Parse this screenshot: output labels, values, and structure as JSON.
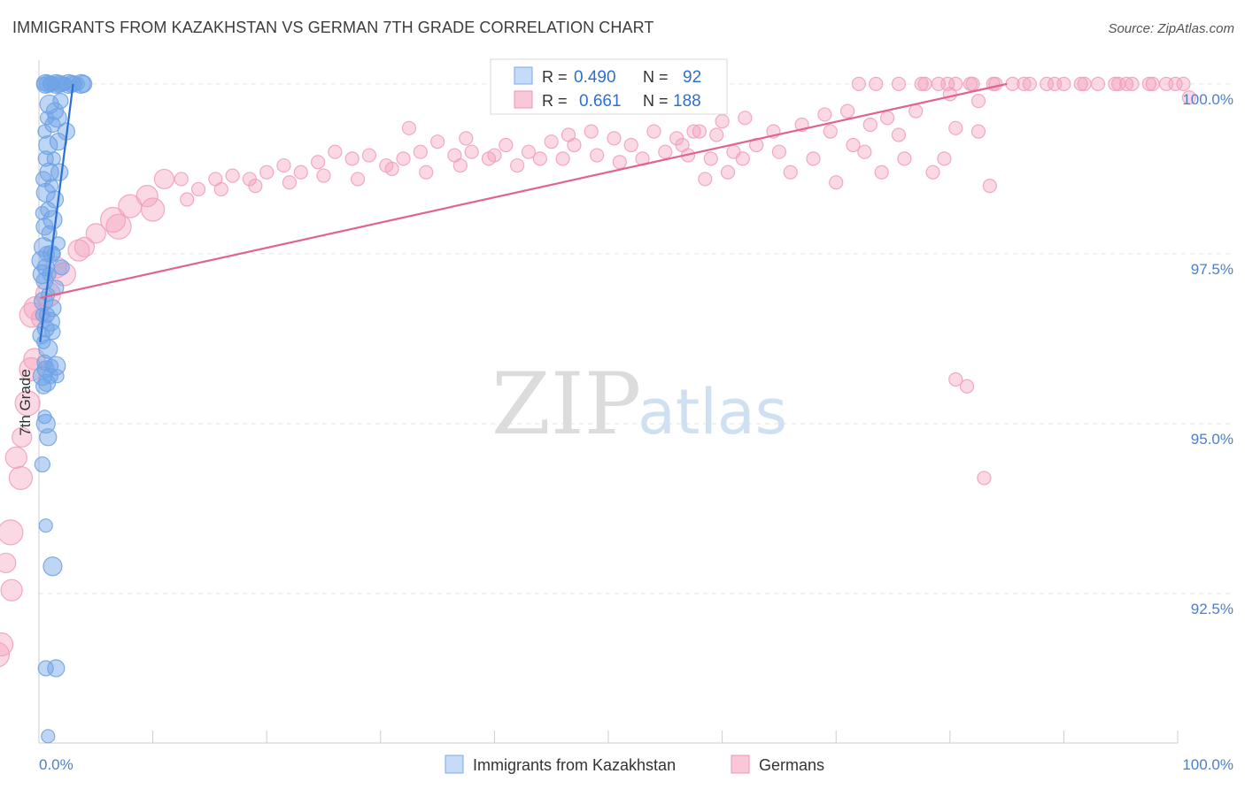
{
  "title": "IMMIGRANTS FROM KAZAKHSTAN VS GERMAN 7TH GRADE CORRELATION CHART",
  "source": "Source: ZipAtlas.com",
  "watermark": {
    "zip": "ZIP",
    "atlas": "atlas"
  },
  "legend_box": {
    "rows": [
      {
        "r_label": "R =",
        "r_value": "0.490",
        "n_label": "N =",
        "n_value": "92"
      },
      {
        "r_label": "R =",
        "r_value": "0.661",
        "n_label": "N =",
        "n_value": "188"
      }
    ]
  },
  "bottom_legend": [
    "Immigrants from Kazakhstan",
    "Germans"
  ],
  "chart_data": {
    "type": "scatter",
    "title": "IMMIGRANTS FROM KAZAKHSTAN VS GERMAN 7TH GRADE CORRELATION CHART",
    "xlabel": "",
    "ylabel": "7th Grade",
    "xlim": [
      0,
      100
    ],
    "ylim": [
      90.3,
      100.35
    ],
    "x_tick_labels": [
      "0.0%",
      "100.0%"
    ],
    "y_ticks": [
      92.5,
      95.0,
      97.5,
      100.0
    ],
    "y_tick_labels": [
      "92.5%",
      "95.0%",
      "97.5%",
      "100.0%"
    ],
    "grid": true,
    "legend_position": "top-center",
    "series": [
      {
        "name": "Immigrants from Kazakhstan",
        "color": "#6fa3e6",
        "line_color": "#2a6fd4",
        "r": "0.490",
        "n": "92",
        "trend": [
          [
            0.1,
            96.2
          ],
          [
            3.0,
            100.0
          ]
        ],
        "points": [
          [
            0.4,
            100
          ],
          [
            0.6,
            100
          ],
          [
            0.8,
            100
          ],
          [
            1.0,
            100
          ],
          [
            1.3,
            100
          ],
          [
            1.5,
            100
          ],
          [
            1.8,
            100
          ],
          [
            2.0,
            100
          ],
          [
            2.3,
            100
          ],
          [
            2.6,
            100
          ],
          [
            2.9,
            100
          ],
          [
            3.1,
            100
          ],
          [
            3.4,
            100
          ],
          [
            3.7,
            100
          ],
          [
            3.9,
            100
          ],
          [
            1.1,
            100
          ],
          [
            2.2,
            100
          ],
          [
            0.9,
            99.7
          ],
          [
            1.4,
            99.6
          ],
          [
            1.9,
            99.75
          ],
          [
            0.7,
            99.5
          ],
          [
            1.6,
            99.5
          ],
          [
            2.4,
            99.3
          ],
          [
            1.2,
            99.4
          ],
          [
            0.5,
            99.3
          ],
          [
            0.8,
            99.1
          ],
          [
            1.7,
            99.15
          ],
          [
            0.6,
            98.9
          ],
          [
            1.3,
            98.9
          ],
          [
            0.9,
            98.7
          ],
          [
            1.8,
            98.7
          ],
          [
            0.4,
            98.6
          ],
          [
            1.1,
            98.5
          ],
          [
            0.6,
            98.4
          ],
          [
            1.4,
            98.3
          ],
          [
            0.8,
            98.15
          ],
          [
            0.3,
            98.1
          ],
          [
            1.2,
            98.0
          ],
          [
            0.5,
            97.9
          ],
          [
            0.9,
            97.8
          ],
          [
            1.7,
            97.65
          ],
          [
            0.4,
            97.6
          ],
          [
            1.1,
            97.5
          ],
          [
            0.7,
            97.5
          ],
          [
            1.3,
            97.5
          ],
          [
            0.2,
            97.4
          ],
          [
            0.6,
            97.3
          ],
          [
            2.0,
            97.3
          ],
          [
            0.9,
            97.2
          ],
          [
            0.3,
            97.2
          ],
          [
            0.5,
            97.1
          ],
          [
            1.5,
            97.0
          ],
          [
            0.8,
            96.9
          ],
          [
            0.4,
            96.8
          ],
          [
            1.2,
            96.7
          ],
          [
            0.7,
            96.6
          ],
          [
            0.3,
            96.6
          ],
          [
            1.0,
            96.5
          ],
          [
            0.6,
            96.4
          ],
          [
            1.2,
            96.35
          ],
          [
            0.4,
            96.2
          ],
          [
            0.8,
            96.1
          ],
          [
            0.2,
            96.3
          ],
          [
            0.5,
            95.9
          ],
          [
            1.1,
            95.85
          ],
          [
            1.5,
            95.85
          ],
          [
            0.6,
            95.8
          ],
          [
            1.0,
            95.7
          ],
          [
            1.6,
            95.7
          ],
          [
            0.3,
            95.7
          ],
          [
            0.7,
            95.6
          ],
          [
            0.4,
            95.55
          ],
          [
            0.5,
            95.1
          ],
          [
            0.6,
            95.0
          ],
          [
            0.8,
            94.8
          ],
          [
            0.3,
            94.4
          ],
          [
            0.6,
            93.5
          ],
          [
            1.2,
            92.9
          ],
          [
            1.5,
            91.4
          ],
          [
            0.6,
            91.4
          ],
          [
            0.8,
            90.4
          ]
        ]
      },
      {
        "name": "Germans",
        "color": "#f2a0bb",
        "line_color": "#e0648e",
        "r": "0.661",
        "n": "188",
        "trend": [
          [
            0.1,
            96.85
          ],
          [
            85.0,
            100.0
          ]
        ],
        "points": [
          [
            72,
            100
          ],
          [
            73.5,
            100
          ],
          [
            75.5,
            100
          ],
          [
            77.5,
            100
          ],
          [
            79,
            100
          ],
          [
            80.5,
            100
          ],
          [
            82,
            100
          ],
          [
            84,
            100
          ],
          [
            85.5,
            100
          ],
          [
            87,
            100
          ],
          [
            88.5,
            100
          ],
          [
            90,
            100
          ],
          [
            91.5,
            100
          ],
          [
            93,
            100
          ],
          [
            94.5,
            100
          ],
          [
            96,
            100
          ],
          [
            97.5,
            100
          ],
          [
            99,
            100
          ],
          [
            100.5,
            100
          ],
          [
            77.8,
            100
          ],
          [
            79.8,
            100
          ],
          [
            81.8,
            100
          ],
          [
            83.8,
            100
          ],
          [
            86.5,
            100
          ],
          [
            89.2,
            100
          ],
          [
            91.8,
            100
          ],
          [
            94.8,
            100
          ],
          [
            95.5,
            100
          ],
          [
            97.8,
            100
          ],
          [
            99.8,
            100
          ],
          [
            80,
            99.85
          ],
          [
            82.5,
            99.75
          ],
          [
            71,
            99.6
          ],
          [
            74.5,
            99.5
          ],
          [
            69,
            99.55
          ],
          [
            67,
            99.4
          ],
          [
            64.5,
            99.3
          ],
          [
            69.5,
            99.3
          ],
          [
            73,
            99.4
          ],
          [
            75.5,
            99.25
          ],
          [
            77,
            99.6
          ],
          [
            80.5,
            99.35
          ],
          [
            60,
            99.45
          ],
          [
            58,
            99.3
          ],
          [
            56,
            99.2
          ],
          [
            54,
            99.3
          ],
          [
            52,
            99.1
          ],
          [
            50.5,
            99.2
          ],
          [
            48.5,
            99.3
          ],
          [
            47,
            99.1
          ],
          [
            45,
            99.15
          ],
          [
            43,
            99.0
          ],
          [
            41,
            99.1
          ],
          [
            39.5,
            98.9
          ],
          [
            38,
            99.0
          ],
          [
            36.5,
            98.95
          ],
          [
            35,
            99.15
          ],
          [
            33.5,
            99.0
          ],
          [
            32,
            98.9
          ],
          [
            30.5,
            98.8
          ],
          [
            29,
            98.95
          ],
          [
            27.5,
            98.9
          ],
          [
            26,
            99.0
          ],
          [
            24.5,
            98.85
          ],
          [
            23,
            98.7
          ],
          [
            21.5,
            98.8
          ],
          [
            20,
            98.7
          ],
          [
            18.5,
            98.6
          ],
          [
            17,
            98.65
          ],
          [
            15.5,
            98.6
          ],
          [
            14,
            98.45
          ],
          [
            12.5,
            98.6
          ],
          [
            11,
            98.6
          ],
          [
            9.5,
            98.35
          ],
          [
            8,
            98.2
          ],
          [
            6.5,
            98.0
          ],
          [
            5,
            97.8
          ],
          [
            3.5,
            97.55
          ],
          [
            2.2,
            97.2
          ],
          [
            0.8,
            96.9
          ],
          [
            61,
            99.0
          ],
          [
            63,
            99.1
          ],
          [
            65,
            99.0
          ],
          [
            59,
            98.9
          ],
          [
            57,
            98.95
          ],
          [
            55,
            99.0
          ],
          [
            53,
            98.9
          ],
          [
            51,
            98.85
          ],
          [
            49,
            98.95
          ],
          [
            46,
            98.9
          ],
          [
            44,
            98.9
          ],
          [
            42,
            98.8
          ],
          [
            40,
            98.95
          ],
          [
            37,
            98.8
          ],
          [
            34,
            98.7
          ],
          [
            31,
            98.75
          ],
          [
            28,
            98.6
          ],
          [
            25,
            98.65
          ],
          [
            22,
            98.55
          ],
          [
            19,
            98.5
          ],
          [
            16,
            98.45
          ],
          [
            13,
            98.3
          ],
          [
            10,
            98.15
          ],
          [
            7,
            97.9
          ],
          [
            4,
            97.6
          ],
          [
            1.5,
            97.3
          ],
          [
            66,
            98.7
          ],
          [
            74,
            98.7
          ],
          [
            76,
            98.9
          ],
          [
            62,
            99.5
          ],
          [
            60.5,
            98.7
          ],
          [
            58.5,
            98.6
          ],
          [
            56.5,
            99.1
          ],
          [
            68,
            98.9
          ],
          [
            79.5,
            98.9
          ],
          [
            82.5,
            99.3
          ],
          [
            83.5,
            98.5
          ],
          [
            78.5,
            98.7
          ],
          [
            72.5,
            99.0
          ],
          [
            71.5,
            99.1
          ],
          [
            70,
            98.55
          ],
          [
            61.8,
            98.9
          ],
          [
            -0.3,
            96.7
          ],
          [
            -0.6,
            96.6
          ],
          [
            0.2,
            96.55
          ],
          [
            -0.4,
            95.95
          ],
          [
            -0.7,
            95.8
          ],
          [
            -1.0,
            95.3
          ],
          [
            -1.5,
            94.8
          ],
          [
            -2.0,
            94.5
          ],
          [
            -1.6,
            94.2
          ],
          [
            -2.5,
            93.4
          ],
          [
            -2.9,
            92.95
          ],
          [
            -2.4,
            92.55
          ],
          [
            -3.3,
            91.75
          ],
          [
            -3.7,
            91.6
          ],
          [
            80.5,
            95.65
          ],
          [
            81.5,
            95.55
          ],
          [
            83,
            94.2
          ],
          [
            101,
            99.8
          ],
          [
            57.5,
            99.3
          ],
          [
            59.5,
            99.25
          ],
          [
            46.5,
            99.25
          ],
          [
            37.5,
            99.2
          ],
          [
            32.5,
            99.35
          ]
        ]
      }
    ]
  }
}
